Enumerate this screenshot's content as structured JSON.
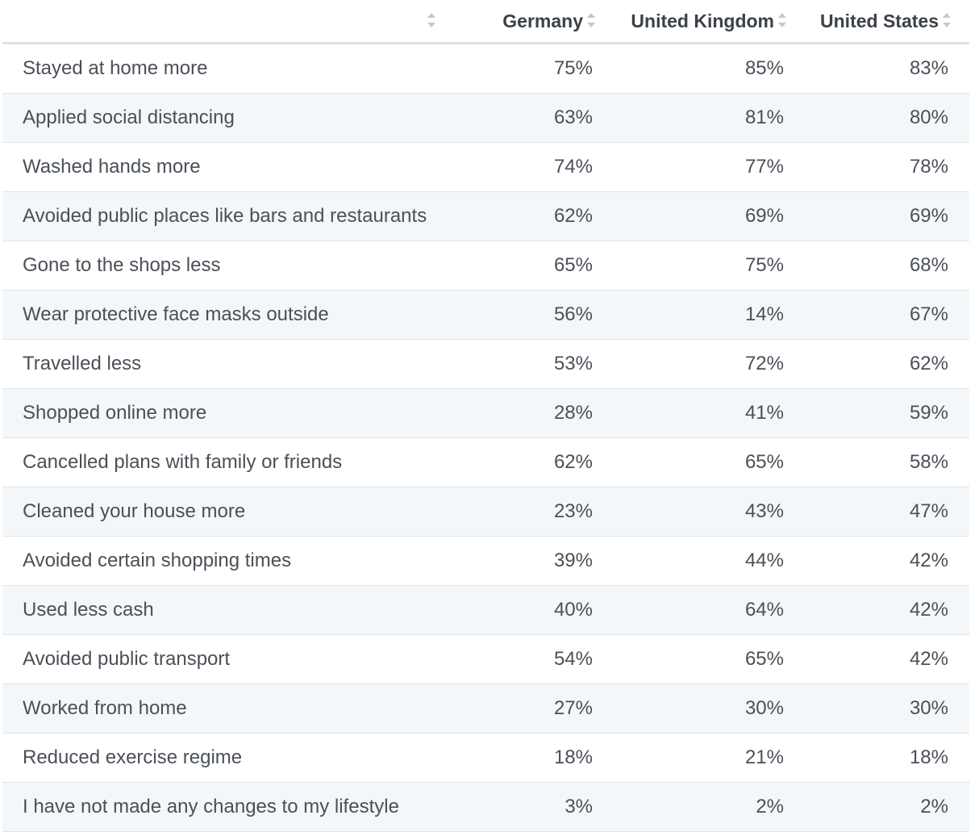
{
  "chart_data": {
    "type": "table",
    "columns": [
      "",
      "Germany",
      "United Kingdom",
      "United States"
    ],
    "series": [
      {
        "name": "Germany",
        "values": [
          "75%",
          "63%",
          "74%",
          "62%",
          "65%",
          "56%",
          "53%",
          "28%",
          "62%",
          "23%",
          "39%",
          "40%",
          "54%",
          "27%",
          "18%",
          "3%"
        ]
      },
      {
        "name": "United Kingdom",
        "values": [
          "85%",
          "81%",
          "77%",
          "69%",
          "75%",
          "14%",
          "72%",
          "41%",
          "65%",
          "43%",
          "44%",
          "64%",
          "65%",
          "30%",
          "21%",
          "2%"
        ]
      },
      {
        "name": "United States",
        "values": [
          "83%",
          "80%",
          "78%",
          "69%",
          "68%",
          "67%",
          "62%",
          "59%",
          "58%",
          "47%",
          "42%",
          "42%",
          "42%",
          "30%",
          "18%",
          "2%"
        ]
      }
    ],
    "rows": [
      {
        "label": "Stayed at home more",
        "germany": "75%",
        "uk": "85%",
        "us": "83%"
      },
      {
        "label": "Applied social distancing",
        "germany": "63%",
        "uk": "81%",
        "us": "80%"
      },
      {
        "label": "Washed hands more",
        "germany": "74%",
        "uk": "77%",
        "us": "78%"
      },
      {
        "label": "Avoided public places like bars and restaurants",
        "germany": "62%",
        "uk": "69%",
        "us": "69%"
      },
      {
        "label": "Gone to the shops less",
        "germany": "65%",
        "uk": "75%",
        "us": "68%"
      },
      {
        "label": "Wear protective face masks outside",
        "germany": "56%",
        "uk": "14%",
        "us": "67%"
      },
      {
        "label": "Travelled less",
        "germany": "53%",
        "uk": "72%",
        "us": "62%"
      },
      {
        "label": "Shopped online more",
        "germany": "28%",
        "uk": "41%",
        "us": "59%"
      },
      {
        "label": "Cancelled plans with family or friends",
        "germany": "62%",
        "uk": "65%",
        "us": "58%"
      },
      {
        "label": "Cleaned your house more",
        "germany": "23%",
        "uk": "43%",
        "us": "47%"
      },
      {
        "label": "Avoided certain shopping times",
        "germany": "39%",
        "uk": "44%",
        "us": "42%"
      },
      {
        "label": "Used less cash",
        "germany": "40%",
        "uk": "64%",
        "us": "42%"
      },
      {
        "label": "Avoided public transport",
        "germany": "54%",
        "uk": "65%",
        "us": "42%"
      },
      {
        "label": "Worked from home",
        "germany": "27%",
        "uk": "30%",
        "us": "30%"
      },
      {
        "label": "Reduced exercise regime",
        "germany": "18%",
        "uk": "21%",
        "us": "18%"
      },
      {
        "label": "I have not made any changes to my lifestyle",
        "germany": "3%",
        "uk": "2%",
        "us": "2%"
      }
    ]
  },
  "colors": {
    "text": "#4a5058",
    "header_text": "#3b4148",
    "stripe": "#f4f7fa",
    "border": "#dfe4ea",
    "sort_icon": "#c3c8ce"
  },
  "icons": {
    "sort": "sort-up-down-icon"
  }
}
